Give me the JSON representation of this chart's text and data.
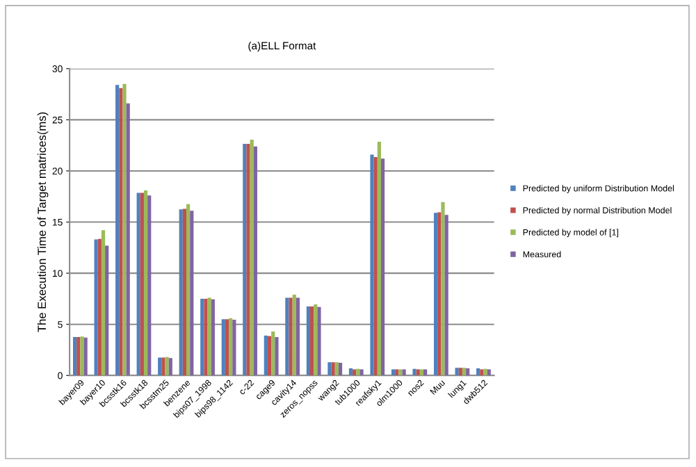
{
  "chart_data": {
    "type": "bar",
    "title": "(a)ELL Format",
    "ylabel": "The Execution Time of Target matrices(ms)",
    "categories": [
      "bayer09",
      "bayer10",
      "bcsstk16",
      "bcsstk18",
      "bcsstm25",
      "benzene",
      "bips07_1998",
      "bips98_1142",
      "c-22",
      "cage9",
      "cavity14",
      "zeros_nopss",
      "wang2",
      "tub1000",
      "reafsky1",
      "olm1000",
      "nos2",
      "Muu",
      "lung1",
      "dwb512"
    ],
    "series": [
      {
        "name": "Predicted by uniform Distribution Model",
        "color": "#4f81bd",
        "values": [
          3.75,
          13.3,
          28.4,
          17.85,
          1.75,
          16.25,
          7.5,
          5.5,
          22.65,
          3.9,
          7.6,
          6.75,
          1.3,
          0.7,
          21.6,
          0.6,
          0.65,
          15.9,
          0.75,
          0.7
        ]
      },
      {
        "name": "Predicted by normal Distribution Model",
        "color": "#c0504d",
        "values": [
          3.75,
          13.35,
          28.1,
          17.85,
          1.75,
          16.3,
          7.5,
          5.5,
          22.65,
          3.85,
          7.6,
          6.75,
          1.3,
          0.6,
          21.35,
          0.6,
          0.6,
          15.95,
          0.75,
          0.6
        ]
      },
      {
        "name": "Predicted by model of [1]",
        "color": "#9bbb59",
        "values": [
          3.8,
          14.2,
          28.5,
          18.1,
          1.8,
          16.75,
          7.6,
          5.6,
          23.05,
          4.3,
          7.9,
          6.95,
          1.3,
          0.65,
          22.85,
          0.6,
          0.6,
          16.95,
          0.75,
          0.65
        ]
      },
      {
        "name": "Measured",
        "color": "#8064a2",
        "values": [
          3.7,
          12.7,
          26.6,
          17.6,
          1.7,
          16.1,
          7.45,
          5.45,
          22.4,
          3.75,
          7.6,
          6.7,
          1.25,
          0.6,
          21.2,
          0.6,
          0.6,
          15.7,
          0.7,
          0.6
        ]
      }
    ],
    "ylim": [
      0,
      30
    ],
    "yticks": [
      0,
      5,
      10,
      15,
      20,
      25,
      30
    ],
    "grid": "y",
    "legend": "right"
  }
}
